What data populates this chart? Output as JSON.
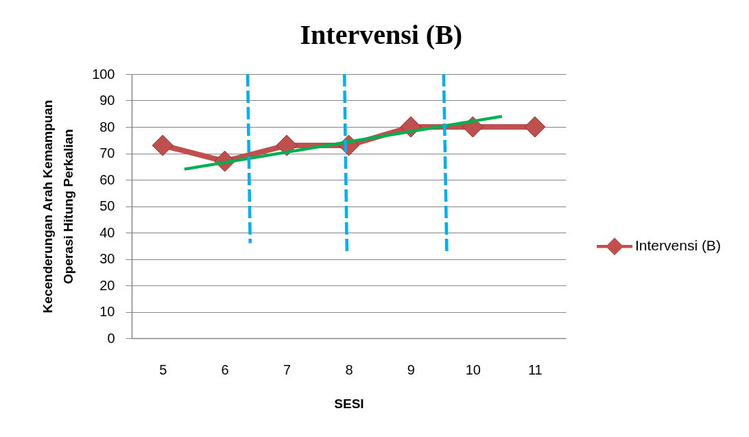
{
  "chart_data": {
    "type": "line",
    "title": "Intervensi (B)",
    "xlabel": "SESI",
    "ylabel": "Kecenderungan Arah Kemampuan Operasi Hitung Perkalian",
    "x": [
      5,
      6,
      7,
      8,
      9,
      10,
      11
    ],
    "xlim": [
      4.5,
      11.5
    ],
    "xticks": [
      5,
      6,
      7,
      8,
      9,
      10,
      11
    ],
    "ylim": [
      0,
      100
    ],
    "yticks": [
      0,
      10,
      20,
      30,
      40,
      50,
      60,
      70,
      80,
      90,
      100
    ],
    "grid": "y",
    "legend": "right",
    "marker": "none",
    "line_style": "solid",
    "series": [
      {
        "name": "Intervensi (B)",
        "color": "#c0504d",
        "values": [
          73,
          67,
          73,
          73,
          80,
          80,
          80
        ],
        "marker": "diamond"
      },
      {
        "type": "line",
        "color": "#00b050",
        "x": [
          5.35,
          10.47
        ],
        "values": [
          64,
          84
        ]
      },
      {
        "type": "line",
        "color": "#00b0f0",
        "x": [
          6.37,
          6.41
        ],
        "values": [
          100,
          36
        ],
        "line_style": "dashed"
      },
      {
        "type": "line",
        "color": "#00b0f0",
        "x": [
          7.93,
          7.97
        ],
        "values": [
          100,
          33
        ],
        "line_style": "dashed"
      },
      {
        "type": "line",
        "color": "#00b0f0",
        "x": [
          9.53,
          9.58
        ],
        "values": [
          100,
          33
        ],
        "line_style": "dashed"
      }
    ]
  }
}
